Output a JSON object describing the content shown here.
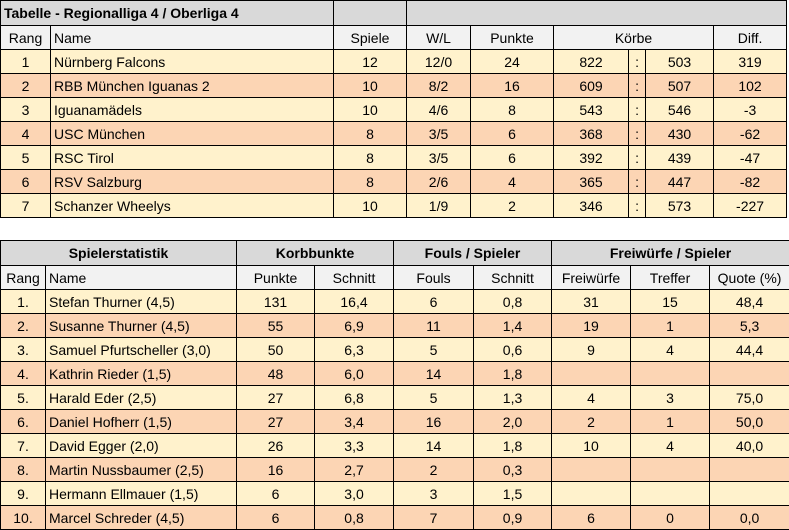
{
  "league": {
    "title": "Tabelle - Regionalliga 4 / Oberliga 4",
    "headers": [
      "Rang",
      "Name",
      "Spiele",
      "W/L",
      "Punkte",
      "Körbe",
      "Diff."
    ],
    "separator": ":",
    "rows": [
      [
        "1",
        "Nürnberg Falcons",
        "12",
        "12/0",
        "24",
        "822",
        "503",
        "319"
      ],
      [
        "2",
        "RBB München Iguanas 2",
        "10",
        "8/2",
        "16",
        "609",
        "507",
        "102"
      ],
      [
        "3",
        "Iguanamädels",
        "10",
        "4/6",
        "8",
        "543",
        "546",
        "-3"
      ],
      [
        "4",
        "USC München",
        "8",
        "3/5",
        "6",
        "368",
        "430",
        "-62"
      ],
      [
        "5",
        "RSC Tirol",
        "8",
        "3/5",
        "6",
        "392",
        "439",
        "-47"
      ],
      [
        "6",
        "RSV Salzburg",
        "8",
        "2/6",
        "4",
        "365",
        "447",
        "-82"
      ],
      [
        "7",
        "Schanzer Wheelys",
        "10",
        "1/9",
        "2",
        "346",
        "573",
        "-227"
      ]
    ]
  },
  "players": {
    "groups": [
      "Spielerstatistik",
      "Korbbunkte",
      "Fouls / Spieler",
      "Freiwürfe / Spieler"
    ],
    "headers": [
      "Rang",
      "Name",
      "Punkte",
      "Schnitt",
      "Fouls",
      "Schnitt",
      "Freiwürfe",
      "Treffer",
      "Quote (%)"
    ],
    "rows": [
      [
        "1.",
        "Stefan Thurner (4,5)",
        "131",
        "16,4",
        "6",
        "0,8",
        "31",
        "15",
        "48,4"
      ],
      [
        "2.",
        "Susanne Thurner (4,5)",
        "55",
        "6,9",
        "11",
        "1,4",
        "19",
        "1",
        "5,3"
      ],
      [
        "3.",
        "Samuel Pfurtscheller (3,0)",
        "50",
        "6,3",
        "5",
        "0,6",
        "9",
        "4",
        "44,4"
      ],
      [
        "4.",
        "Kathrin Rieder (1,5)",
        "48",
        "6,0",
        "14",
        "1,8",
        "",
        "",
        ""
      ],
      [
        "5.",
        "Harald Eder (2,5)",
        "27",
        "6,8",
        "5",
        "1,3",
        "4",
        "3",
        "75,0"
      ],
      [
        "6.",
        "Daniel Hofherr (1,5)",
        "27",
        "3,4",
        "16",
        "2,0",
        "2",
        "1",
        "50,0"
      ],
      [
        "7.",
        "David Egger (2,0)",
        "26",
        "3,3",
        "14",
        "1,8",
        "10",
        "4",
        "40,0"
      ],
      [
        "8.",
        "Martin Nussbaumer (2,5)",
        "16",
        "2,7",
        "2",
        "0,3",
        "",
        "",
        ""
      ],
      [
        "9.",
        "Hermann Ellmauer (1,5)",
        "6",
        "3,0",
        "3",
        "1,5",
        "",
        "",
        ""
      ],
      [
        "10.",
        "Marcel Schreder (4,5)",
        "6",
        "0,8",
        "7",
        "0,9",
        "6",
        "0",
        "0,0"
      ]
    ]
  },
  "colors": {
    "header": "#d9d9d9",
    "subheader": "#f2f2f2",
    "row_light": "#fff2cc",
    "row_orange": "#fcd5b4"
  }
}
